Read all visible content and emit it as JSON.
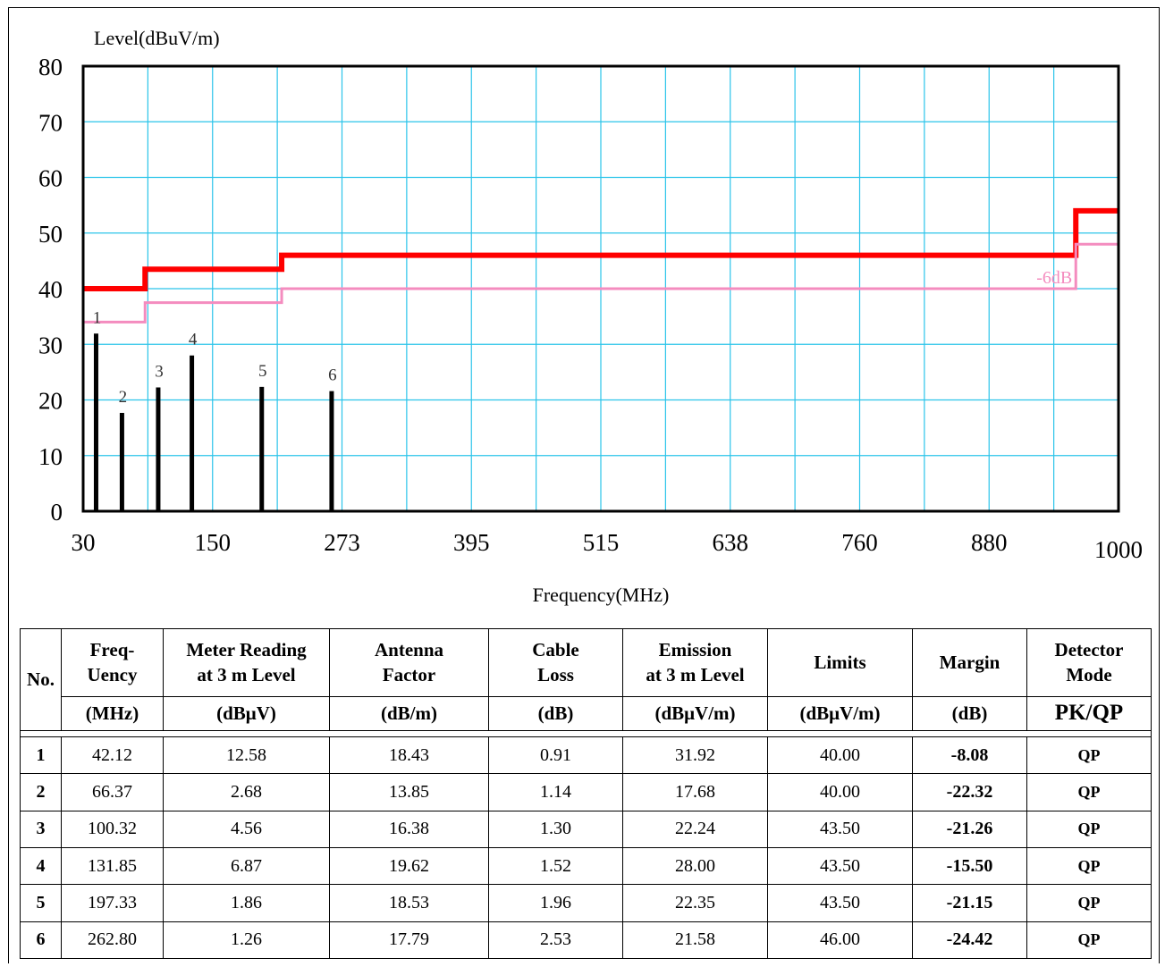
{
  "chart_data": {
    "type": "bar",
    "ylabel": "Level(dBuV/m)",
    "xlabel": "Frequency(MHz)",
    "ylim": [
      0,
      80
    ],
    "xlim": [
      30,
      1000
    ],
    "yticks": [
      0,
      10,
      20,
      30,
      40,
      50,
      60,
      70,
      80
    ],
    "xtick_labels": [
      "30",
      "150",
      "273",
      "395",
      "515",
      "638",
      "760",
      "880",
      "1000"
    ],
    "grid": true,
    "limit_lines": [
      {
        "color": "#ff0000",
        "steps": [
          [
            30,
            40.0
          ],
          [
            88,
            40.0
          ],
          [
            88,
            43.5
          ],
          [
            216,
            43.5
          ],
          [
            216,
            46.0
          ],
          [
            960,
            46.0
          ],
          [
            960,
            54.0
          ],
          [
            1000,
            54.0
          ]
        ]
      },
      {
        "name": "-6dB",
        "color": "#f48cbf",
        "steps": [
          [
            30,
            34.0
          ],
          [
            88,
            34.0
          ],
          [
            88,
            37.5
          ],
          [
            216,
            37.5
          ],
          [
            216,
            40.0
          ],
          [
            960,
            40.0
          ],
          [
            960,
            48.0
          ],
          [
            1000,
            48.0
          ]
        ]
      }
    ],
    "markers": [
      {
        "label": "1",
        "x": 42.12,
        "y": 31.92
      },
      {
        "label": "2",
        "x": 66.37,
        "y": 17.68
      },
      {
        "label": "3",
        "x": 100.32,
        "y": 22.24
      },
      {
        "label": "4",
        "x": 131.85,
        "y": 28.0
      },
      {
        "label": "5",
        "x": 197.33,
        "y": 22.35
      },
      {
        "label": "6",
        "x": 262.8,
        "y": 21.58
      }
    ]
  },
  "table": {
    "headers": {
      "no": "No.",
      "freq": [
        "Freq-",
        "Uency"
      ],
      "meter": [
        "Meter Reading",
        "at 3 m Level"
      ],
      "antenna": [
        "Antenna",
        "Factor"
      ],
      "cable": [
        "Cable",
        "Loss"
      ],
      "emission": [
        "Emission",
        "at 3 m Level"
      ],
      "limits": "Limits",
      "margin": "Margin",
      "detector": [
        "Detector",
        "Mode"
      ]
    },
    "units": [
      "(MHz)",
      "(dBμV)",
      "(dB/m)",
      "(dB)",
      "(dBμV/m)",
      "(dBμV/m)",
      "(dB)",
      "PK/QP"
    ],
    "rows": [
      [
        "1",
        "42.12",
        "12.58",
        "18.43",
        "0.91",
        "31.92",
        "40.00",
        "-8.08",
        "QP"
      ],
      [
        "2",
        "66.37",
        "2.68",
        "13.85",
        "1.14",
        "17.68",
        "40.00",
        "-22.32",
        "QP"
      ],
      [
        "3",
        "100.32",
        "4.56",
        "16.38",
        "1.30",
        "22.24",
        "43.50",
        "-21.26",
        "QP"
      ],
      [
        "4",
        "131.85",
        "6.87",
        "19.62",
        "1.52",
        "28.00",
        "43.50",
        "-15.50",
        "QP"
      ],
      [
        "5",
        "197.33",
        "1.86",
        "18.53",
        "1.96",
        "22.35",
        "43.50",
        "-21.15",
        "QP"
      ],
      [
        "6",
        "262.80",
        "1.26",
        "17.79",
        "2.53",
        "21.58",
        "46.00",
        "-24.42",
        "QP"
      ]
    ]
  }
}
